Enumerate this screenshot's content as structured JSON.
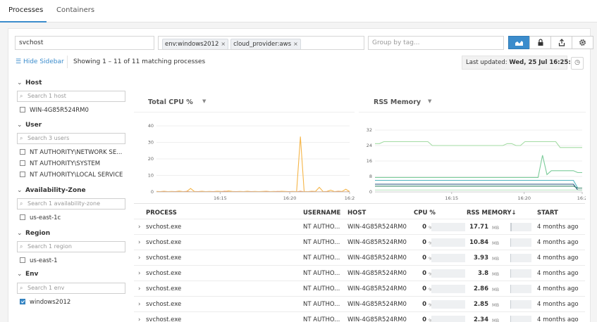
{
  "tabs": [
    {
      "label": "Processes",
      "active": true
    },
    {
      "label": "Containers",
      "active": false
    }
  ],
  "search": {
    "value": "svchost"
  },
  "filters": {
    "chips": [
      {
        "label": "env:windows2012"
      },
      {
        "label": "cloud_provider:aws"
      }
    ]
  },
  "group_by": {
    "placeholder": "Group by tag..."
  },
  "toolbar": {
    "hide_sidebar": "Hide Sidebar",
    "showing": "Showing 1 – 11 of 11 matching processes",
    "last_updated_label": "Last updated:",
    "last_updated_value": "Wed, 25 Jul 16:25:41"
  },
  "sidebar": {
    "facets": [
      {
        "title": "Host",
        "search": "Search 1 host",
        "items": [
          {
            "label": "WIN-4G85R524RM0",
            "checked": false
          }
        ]
      },
      {
        "title": "User",
        "search": "Search 3 users",
        "items": [
          {
            "label": "NT AUTHORITY\\NETWORK SE...",
            "checked": false
          },
          {
            "label": "NT AUTHORITY\\SYSTEM",
            "checked": false
          },
          {
            "label": "NT AUTHORITY\\LOCAL SERVICE",
            "checked": false
          }
        ]
      },
      {
        "title": "Availability-Zone",
        "search": "Search 1 availability-zone",
        "items": [
          {
            "label": "us-east-1c",
            "checked": false
          }
        ]
      },
      {
        "title": "Region",
        "search": "Search 1 region",
        "items": [
          {
            "label": "us-east-1",
            "checked": false
          }
        ]
      },
      {
        "title": "Env",
        "search": "Search 1 env",
        "items": [
          {
            "label": "windows2012",
            "checked": true
          }
        ]
      }
    ]
  },
  "graphs": {
    "cpu": {
      "title": "Total CPU %",
      "y_ticks": [
        "40",
        "30",
        "20",
        "10",
        "0"
      ],
      "x_ticks": [
        "16:15",
        "16:20",
        "16:2"
      ],
      "ylim": [
        0,
        40
      ],
      "series": [
        {
          "color": "#f5b548",
          "values": [
            0.3,
            0.2,
            0.4,
            0.2,
            0.3,
            0.2,
            0.5,
            0.2,
            0.3,
            2.1,
            0.3,
            0.2,
            0.4,
            0.2,
            0.3,
            0.2,
            0.4,
            0.3,
            0.2,
            0.6,
            0.3,
            0.2,
            0.3,
            0.2,
            0.4,
            0.2,
            0.3,
            0.2,
            0.3,
            0.4,
            0.2,
            0.3,
            0.2,
            0.4,
            0.3,
            0.2,
            0.3,
            0.2,
            33.5,
            0.3,
            0.2,
            0.4,
            0.3,
            2.8,
            0.2,
            0.3,
            1.1,
            0.2,
            0.4,
            0.3,
            1.6,
            0.2
          ]
        },
        {
          "color": "#e8843a",
          "values": [
            0.1,
            0.1,
            0.2,
            0.1,
            0.1,
            0.2,
            0.1,
            0.1,
            0.3,
            0.1,
            0.1,
            0.2,
            0.1,
            0.1,
            0.1,
            0.2,
            0.1,
            0.1,
            0.4,
            0.1,
            0.1,
            0.2,
            0.1,
            0.1,
            0.1,
            0.2,
            0.1,
            0.1,
            0.1,
            0.2,
            0.1,
            0.1,
            0.3,
            0.1,
            0.1,
            0.2,
            0.1,
            0.1,
            0.4,
            0.1,
            0.1,
            0.2,
            0.1,
            0.1,
            0.1,
            0.2,
            0.1,
            0.1,
            0.3,
            0.1,
            0.1,
            0.2
          ]
        },
        {
          "color": "#2c5f8a",
          "values": [
            0.0,
            0.0,
            0.0,
            0.0,
            0.0,
            0.0,
            0.0,
            0.0,
            0.0,
            0.0,
            0.0,
            0.0,
            0.0,
            0.0,
            0.0,
            0.0,
            0.0,
            0.0,
            0.0,
            0.0,
            0.0,
            0.0,
            0.0,
            0.0,
            0.0,
            0.0,
            0.0,
            0.0,
            0.0,
            0.0,
            0.0,
            0.0,
            0.0,
            0.0,
            0.0,
            0.0,
            0.0,
            0.0,
            0.0,
            0.0,
            0.0,
            0.0,
            0.0,
            0.0,
            0.0,
            0.0,
            0.0,
            0.0,
            0.0,
            0.0,
            0.0,
            0.0
          ]
        }
      ]
    },
    "rss": {
      "title": "RSS Memory",
      "y_ticks": [
        "32",
        "24",
        "16",
        "8",
        "0"
      ],
      "x_ticks": [
        "16:15",
        "16:20",
        "16:2"
      ],
      "ylim": [
        0,
        32
      ],
      "series": [
        {
          "color": "#a3dba3",
          "values": [
            25,
            25,
            26,
            26,
            26,
            26,
            26,
            26,
            26,
            26,
            26,
            26,
            26,
            24,
            24,
            24,
            24,
            24,
            24,
            24,
            24,
            24,
            24,
            24,
            24,
            24,
            24,
            24,
            24,
            24,
            25,
            25,
            24,
            24,
            26,
            26,
            26,
            26,
            26,
            26,
            26,
            26,
            23,
            23,
            23,
            23,
            23,
            23
          ]
        },
        {
          "color": "#7ccc9a",
          "values": [
            7.5,
            7.5,
            7.5,
            7.5,
            7.5,
            7.5,
            7.5,
            7.5,
            7.5,
            7.5,
            7.5,
            7.5,
            7.5,
            7.5,
            7.5,
            7.5,
            7.5,
            7.5,
            7.5,
            7.5,
            7.5,
            7.5,
            7.5,
            7.5,
            7.5,
            7.5,
            7.5,
            7.5,
            7.5,
            7.5,
            7.5,
            7.5,
            7.5,
            7.5,
            7.5,
            7.5,
            7.5,
            7.5,
            19,
            9,
            11,
            11,
            11,
            11,
            11,
            11,
            10,
            10
          ]
        },
        {
          "color": "#4fb3bf",
          "values": [
            6,
            6,
            6,
            6,
            6,
            6,
            6,
            6,
            6,
            6,
            6,
            6,
            6,
            6,
            6,
            6,
            6,
            6,
            6,
            6,
            6,
            6,
            6,
            6,
            6,
            6,
            6,
            6,
            6,
            6,
            6,
            6,
            6,
            6,
            6,
            6,
            6,
            6,
            6,
            6,
            6,
            6,
            6,
            6,
            6,
            6,
            2,
            2
          ]
        },
        {
          "color": "#1f4e79",
          "values": [
            4,
            4,
            4,
            4,
            4,
            4,
            4,
            4,
            4,
            4,
            4,
            4,
            4,
            4,
            4,
            4,
            4,
            4,
            4,
            4,
            4,
            4,
            4,
            4,
            4,
            4,
            4,
            4,
            4,
            4,
            4,
            4,
            4,
            4,
            4,
            4,
            4,
            4,
            4,
            4,
            4,
            4,
            4,
            4,
            4,
            4,
            1,
            1
          ]
        },
        {
          "color": "#3d8a6e",
          "values": [
            3,
            3,
            3,
            3,
            3,
            3,
            3,
            3,
            3,
            3,
            3,
            3,
            3,
            3,
            3,
            3,
            3,
            3,
            3,
            3,
            3,
            3,
            3,
            3,
            3,
            3,
            3,
            3,
            3,
            3,
            3,
            3,
            3,
            3,
            3,
            3,
            3,
            3,
            3,
            3,
            3,
            3,
            3,
            3,
            3,
            3,
            2,
            2
          ]
        },
        {
          "color": "#bfe6c5",
          "values": [
            1,
            1,
            1,
            1,
            1,
            1,
            1,
            1,
            1,
            1,
            1,
            1,
            1,
            1,
            1,
            1,
            1,
            1,
            1,
            1,
            1,
            1,
            1,
            1,
            1,
            1,
            1,
            1,
            1,
            1,
            1,
            1,
            1,
            1,
            1,
            1,
            1,
            1,
            1,
            1,
            1,
            1,
            1,
            1,
            1,
            1,
            1,
            1
          ]
        }
      ]
    }
  },
  "table": {
    "headers": {
      "process": "PROCESS",
      "username": "USERNAME",
      "host": "HOST",
      "cpu": "CPU %",
      "rss": "RSS MEMORY↓",
      "start": "START"
    },
    "rows": [
      {
        "process": "svchost.exe",
        "username": "NT AUTHO...",
        "host": "WIN-4G85R524RM0",
        "cpu": "0",
        "cpu_unit": "%",
        "rss": "17.71",
        "rss_unit": "MB",
        "rss_fraction": 1.0,
        "start": "4 months ago"
      },
      {
        "process": "svchost.exe",
        "username": "NT AUTHO...",
        "host": "WIN-4G85R524RM0",
        "cpu": "0",
        "cpu_unit": "%",
        "rss": "10.84",
        "rss_unit": "MB",
        "rss_fraction": 0.61,
        "start": "4 months ago"
      },
      {
        "process": "svchost.exe",
        "username": "NT AUTHO...",
        "host": "WIN-4G85R524RM0",
        "cpu": "0",
        "cpu_unit": "%",
        "rss": "3.93",
        "rss_unit": "MB",
        "rss_fraction": 0.22,
        "start": "4 months ago"
      },
      {
        "process": "svchost.exe",
        "username": "NT AUTHO...",
        "host": "WIN-4G85R524RM0",
        "cpu": "0",
        "cpu_unit": "%",
        "rss": "3.8",
        "rss_unit": "MB",
        "rss_fraction": 0.21,
        "start": "4 months ago"
      },
      {
        "process": "svchost.exe",
        "username": "NT AUTHO...",
        "host": "WIN-4G85R524RM0",
        "cpu": "0",
        "cpu_unit": "%",
        "rss": "2.86",
        "rss_unit": "MB",
        "rss_fraction": 0.16,
        "start": "4 months ago"
      },
      {
        "process": "svchost.exe",
        "username": "NT AUTHO...",
        "host": "WIN-4G85R524RM0",
        "cpu": "0",
        "cpu_unit": "%",
        "rss": "2.85",
        "rss_unit": "MB",
        "rss_fraction": 0.16,
        "start": "4 months ago"
      },
      {
        "process": "svchost.exe",
        "username": "NT AUTHO...",
        "host": "WIN-4G85R524RM0",
        "cpu": "0",
        "cpu_unit": "%",
        "rss": "2.34",
        "rss_unit": "MB",
        "rss_fraction": 0.13,
        "start": "4 months ago"
      }
    ]
  },
  "colors": {
    "accent": "#3b8ccc"
  }
}
